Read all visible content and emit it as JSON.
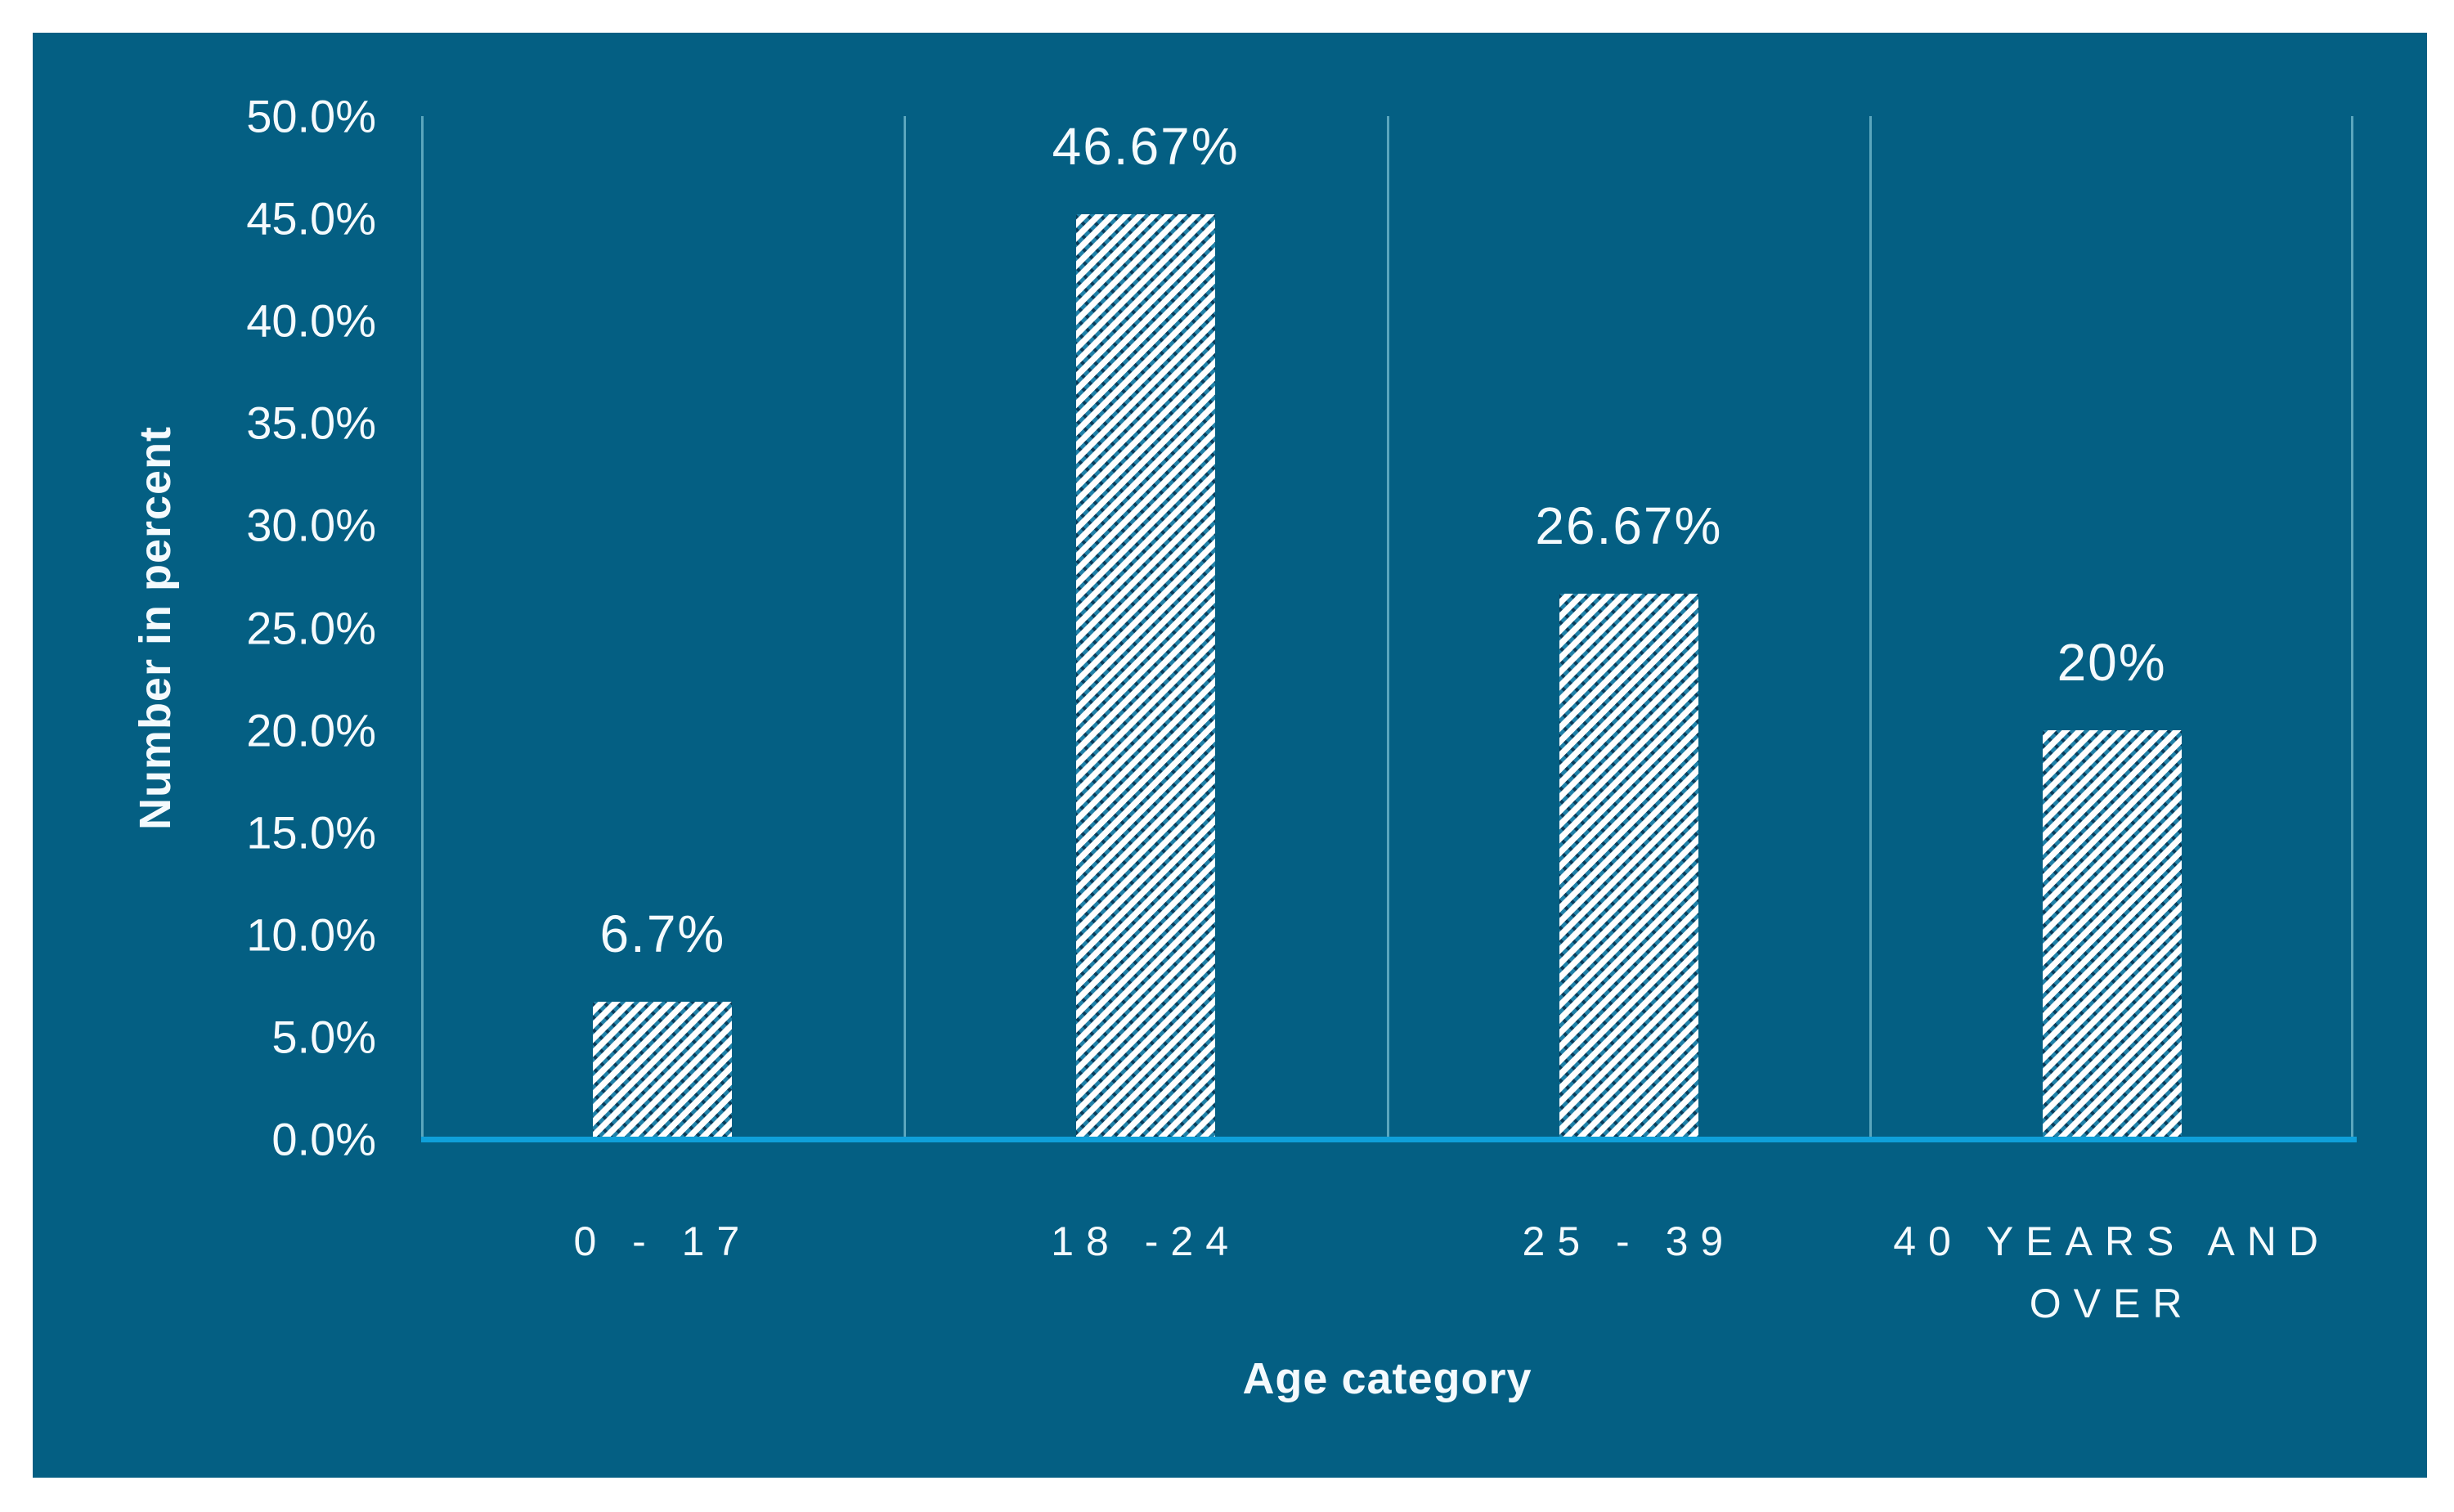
{
  "chart_data": {
    "type": "bar",
    "title": "",
    "categories": [
      "0 - 17",
      "18 -24",
      "25 - 39",
      "40 YEARS AND OVER"
    ],
    "values": [
      6.7,
      46.67,
      26.67,
      20
    ],
    "data_labels": [
      "6.7%",
      "46.67%",
      "26.67%",
      "20%"
    ],
    "xlabel": "Age category",
    "ylabel": "Number in percent",
    "ylim": [
      0,
      50
    ],
    "ytick_step": 5,
    "yticks": [
      "50.0%",
      "45.0%",
      "40.0%",
      "35.0%",
      "30.0%",
      "25.0%",
      "20.0%",
      "15.0%",
      "10.0%",
      "5.0%",
      "0.0%"
    ],
    "grid": "vertical category separators only",
    "legend": "none",
    "bar_style": "white bars with diagonal teal hatch stripes and dark dots"
  },
  "colors": {
    "chart_bg": "#045F83",
    "text": "#F4FAFD",
    "grid": "rgba(150,214,228,0.6)",
    "axis_line": "#0FA0DA",
    "bar_base": "#FFFFFF",
    "bar_stripe": "#1F80A7",
    "bar_dot": "#093D5B",
    "page_bg": "#FFFFFF"
  }
}
